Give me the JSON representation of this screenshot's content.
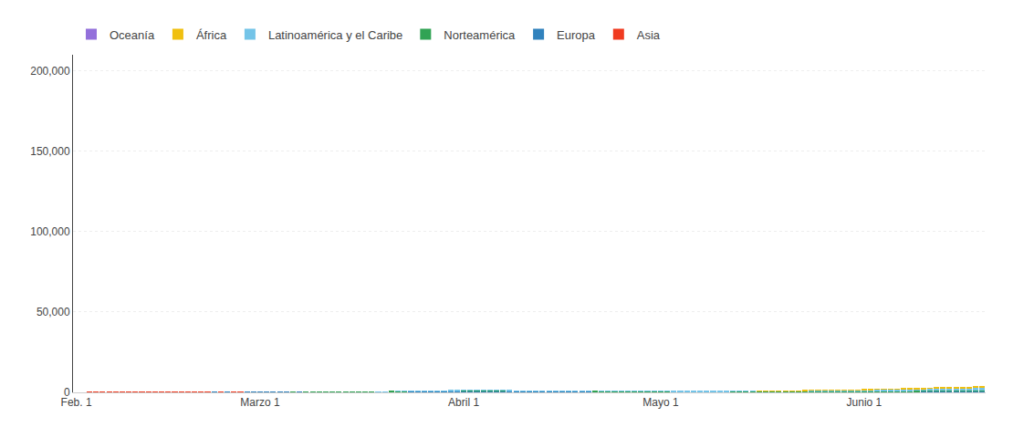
{
  "chart_data": {
    "type": "bar",
    "stacked": true,
    "grid": true,
    "legend": "upper left",
    "categories": [
      "Feb. 1",
      null,
      null,
      null,
      null,
      null,
      null,
      null,
      null,
      null,
      null,
      null,
      null,
      null,
      null,
      null,
      null,
      null,
      null,
      null,
      null,
      null,
      null,
      null,
      null,
      null,
      null,
      null,
      "Marzo 1",
      null,
      null,
      null,
      null,
      null,
      null,
      null,
      null,
      null,
      null,
      null,
      null,
      null,
      null,
      null,
      null,
      null,
      null,
      null,
      null,
      null,
      null,
      null,
      null,
      null,
      null,
      null,
      null,
      null,
      null,
      "Abril 1",
      null,
      null,
      null,
      null,
      null,
      null,
      null,
      null,
      null,
      null,
      null,
      null,
      null,
      null,
      null,
      null,
      null,
      null,
      null,
      null,
      null,
      null,
      null,
      null,
      null,
      null,
      null,
      null,
      null,
      "Mayo 1",
      null,
      null,
      null,
      null,
      null,
      null,
      null,
      null,
      null,
      null,
      null,
      null,
      null,
      null,
      null,
      null,
      null,
      null,
      null,
      null,
      null,
      null,
      null,
      null,
      null,
      null,
      null,
      null,
      null,
      null,
      "Junio 1",
      null,
      null,
      null,
      null,
      null,
      null,
      null,
      null,
      null,
      null,
      null,
      null,
      null,
      null,
      null,
      null,
      null,
      null
    ],
    "ylim": [
      0,
      210000
    ],
    "yticks": [
      0,
      {
        "value": 50000,
        "label": "50,000"
      },
      {
        "value": 100000,
        "label": "100,000"
      },
      {
        "value": 150000,
        "label": "150,000"
      },
      {
        "value": 200000,
        "label": "200,000"
      }
    ],
    "series": [
      {
        "name": "Asia",
        "color": "#f03b20",
        "values": [
          2,
          2,
          3,
          3,
          4,
          5,
          6,
          8,
          10,
          15,
          22,
          38,
          57,
          64,
          60,
          56,
          50,
          47,
          42,
          38,
          34,
          31,
          27,
          24,
          22,
          20,
          18,
          16,
          15,
          14,
          13,
          12,
          11,
          10,
          9,
          8,
          7,
          7,
          6,
          6,
          6,
          6,
          6,
          6,
          7,
          7,
          8,
          8,
          9,
          9,
          10,
          10,
          11,
          12,
          13,
          15,
          17,
          19,
          21,
          24,
          27,
          30,
          34,
          38,
          42,
          45,
          47,
          49,
          51,
          52,
          53,
          54,
          55,
          55,
          55,
          56,
          57,
          58,
          59,
          60,
          62,
          63,
          65,
          67,
          70,
          73,
          77,
          81,
          85,
          89,
          93,
          97,
          101,
          105,
          109,
          113,
          117,
          121,
          125,
          130,
          135,
          140,
          146,
          152,
          158,
          165,
          172,
          179,
          186,
          194,
          202,
          210,
          218,
          227,
          236,
          245,
          254,
          263,
          272,
          281,
          290,
          299,
          308,
          317,
          326,
          335,
          344,
          353,
          362,
          371,
          381,
          391,
          401,
          411,
          421,
          431,
          441,
          451,
          461
        ]
      },
      {
        "name": "Europa",
        "color": "#3182bd",
        "values": [
          0,
          0,
          0,
          0,
          0,
          0,
          0,
          0,
          0,
          0,
          0,
          0,
          0,
          0,
          0,
          0,
          0,
          0,
          0,
          1,
          1,
          1,
          1,
          2,
          2,
          2,
          3,
          4,
          5,
          7,
          9,
          12,
          16,
          21,
          28,
          36,
          47,
          60,
          76,
          95,
          118,
          145,
          176,
          210,
          248,
          289,
          333,
          379,
          425,
          471,
          515,
          557,
          595,
          628,
          657,
          681,
          701,
          716,
          728,
          736,
          741,
          743,
          743,
          741,
          737,
          730,
          721,
          710,
          698,
          684,
          668,
          651,
          633,
          615,
          596,
          577,
          558,
          539,
          521,
          503,
          486,
          470,
          455,
          441,
          428,
          415,
          403,
          392,
          381,
          371,
          362,
          353,
          344,
          336,
          328,
          321,
          314,
          307,
          301,
          295,
          289,
          284,
          279,
          274,
          270,
          265,
          261,
          257,
          253,
          250,
          246,
          243,
          240,
          237,
          234,
          231,
          228,
          225,
          222,
          219,
          216,
          214,
          211,
          209,
          207,
          205,
          203,
          201,
          199,
          197,
          195,
          194,
          192,
          191,
          190,
          189,
          188,
          187,
          186
        ]
      },
      {
        "name": "Norteamérica",
        "color": "#31a354",
        "values": [
          0,
          0,
          0,
          0,
          0,
          0,
          0,
          0,
          0,
          0,
          0,
          0,
          0,
          0,
          0,
          0,
          0,
          0,
          0,
          0,
          0,
          0,
          0,
          0,
          0,
          0,
          0,
          0,
          0,
          1,
          1,
          1,
          2,
          3,
          4,
          5,
          7,
          9,
          12,
          16,
          21,
          28,
          36,
          46,
          59,
          75,
          93,
          114,
          137,
          162,
          188,
          215,
          242,
          268,
          293,
          316,
          336,
          354,
          368,
          378,
          384,
          386,
          384,
          379,
          370,
          358,
          344,
          328,
          310,
          292,
          274,
          256,
          239,
          223,
          209,
          196,
          184,
          174,
          164,
          155,
          147,
          141,
          135,
          131,
          127,
          123,
          120,
          118,
          116,
          115,
          114,
          114,
          115,
          116,
          118,
          120,
          123,
          127,
          131,
          136,
          141,
          147,
          154,
          161,
          169,
          177,
          185,
          194,
          203,
          213,
          223,
          234,
          245,
          256,
          268,
          280,
          292,
          305,
          318,
          331,
          344,
          358,
          372,
          386,
          400,
          414,
          428,
          442,
          456,
          470,
          484,
          498,
          512,
          526,
          540,
          554,
          568,
          582,
          596
        ]
      },
      {
        "name": "Latinoamérica y el Caribe",
        "color": "#74c4e8",
        "values": [
          0,
          0,
          0,
          0,
          0,
          0,
          0,
          0,
          0,
          0,
          0,
          0,
          0,
          0,
          0,
          0,
          0,
          0,
          0,
          0,
          0,
          0,
          0,
          0,
          0,
          0,
          0,
          0,
          0,
          0,
          0,
          0,
          0,
          0,
          0,
          0,
          0,
          0,
          0,
          0,
          0,
          0,
          0,
          0,
          0,
          0,
          1,
          2,
          3,
          5,
          8,
          12,
          18,
          24,
          31,
          39,
          47,
          55,
          62,
          68,
          72,
          74,
          73,
          71,
          67,
          61,
          54,
          47,
          40,
          33,
          27,
          22,
          17,
          13,
          10,
          8,
          7,
          6,
          6,
          5,
          5,
          6,
          6,
          7,
          9,
          11,
          14,
          18,
          23,
          29,
          36,
          44,
          53,
          64,
          76,
          89,
          103,
          118,
          134,
          151,
          169,
          188,
          208,
          229,
          251,
          274,
          298,
          323,
          350,
          377,
          406,
          436,
          467,
          500,
          534,
          569,
          606,
          644,
          683,
          723,
          764,
          806,
          850,
          895,
          941,
          988,
          1036,
          1085,
          1135,
          1185,
          1236,
          1288,
          1341,
          1395,
          1450,
          1506,
          1563,
          1621,
          1680
        ]
      },
      {
        "name": "África",
        "color": "#f0c010",
        "values": [
          0,
          0,
          0,
          0,
          0,
          0,
          0,
          0,
          0,
          0,
          0,
          0,
          0,
          0,
          0,
          0,
          0,
          0,
          0,
          0,
          0,
          0,
          0,
          0,
          0,
          0,
          0,
          0,
          0,
          0,
          0,
          0,
          0,
          0,
          0,
          0,
          0,
          0,
          0,
          0,
          0,
          0,
          0,
          0,
          0,
          0,
          0,
          0,
          0,
          0,
          0,
          0,
          0,
          0,
          0,
          0,
          0,
          0,
          0,
          0,
          0,
          0,
          0,
          0,
          0,
          0,
          0,
          0,
          0,
          0,
          0,
          0,
          0,
          0,
          0,
          0,
          0,
          0,
          0,
          0,
          0,
          0,
          0,
          0,
          0,
          0,
          0,
          0,
          0,
          0,
          0,
          0,
          0,
          0,
          0,
          0,
          0,
          0,
          0,
          0,
          0,
          1,
          1,
          2,
          3,
          5,
          7,
          10,
          14,
          19,
          26,
          34,
          43,
          53,
          64,
          76,
          90,
          105,
          122,
          141,
          162,
          185,
          210,
          238,
          268,
          300,
          335,
          373,
          413,
          456,
          501,
          549,
          600,
          653,
          709,
          768,
          829,
          893,
          960
        ]
      },
      {
        "name": "Oceanía",
        "color": "#9370db",
        "values": [
          0,
          0,
          0,
          0,
          0,
          0,
          0,
          0,
          0,
          0,
          0,
          0,
          0,
          0,
          0,
          0,
          0,
          0,
          0,
          0,
          0,
          0,
          0,
          0,
          0,
          0,
          0,
          0,
          0,
          0,
          0,
          0,
          0,
          0,
          0,
          0,
          0,
          0,
          0,
          0,
          0,
          0,
          0,
          0,
          0,
          0,
          0,
          0,
          0,
          0,
          0,
          0,
          0,
          0,
          0,
          0,
          0,
          0,
          0,
          0,
          0,
          0,
          0,
          0,
          0,
          0,
          0,
          0,
          0,
          0,
          0,
          0,
          0,
          0,
          0,
          0,
          0,
          0,
          0,
          0,
          0,
          0,
          0,
          0,
          0,
          0,
          0,
          0,
          0,
          0,
          0,
          0,
          0,
          0,
          0,
          0,
          0,
          0,
          0,
          0,
          0,
          0,
          0,
          0,
          0,
          0,
          0,
          0,
          0,
          0,
          0,
          0,
          0,
          0,
          0,
          0,
          0,
          0,
          0,
          0,
          0,
          0,
          0,
          0,
          0,
          0,
          0,
          0,
          0,
          0,
          0,
          0,
          0,
          0,
          0,
          0,
          0,
          0,
          0
        ]
      }
    ]
  }
}
